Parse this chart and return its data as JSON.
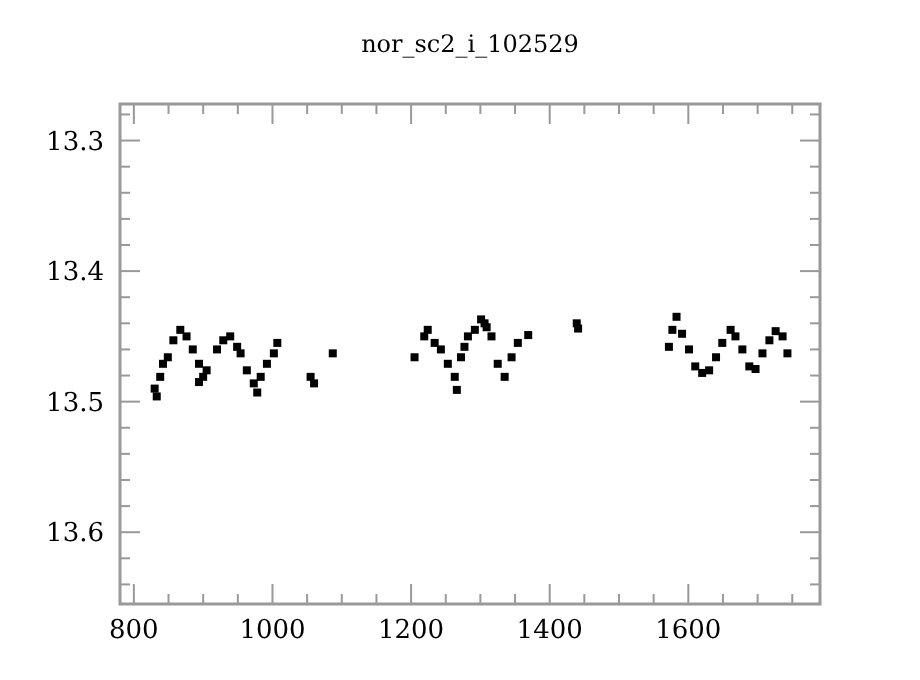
{
  "chart_data": {
    "type": "scatter",
    "title": "nor_sc2_i_102529",
    "marker": "square",
    "grid": false,
    "xlim": [
      780,
      1790
    ],
    "ylim": [
      13.655,
      13.272
    ],
    "xticks": [
      800,
      {
        "value": 850,
        "label": null
      },
      {
        "value": 900,
        "label": null
      },
      {
        "value": 950,
        "label": null
      },
      1000,
      {
        "value": 1050,
        "label": null
      },
      {
        "value": 1100,
        "label": null
      },
      {
        "value": 1150,
        "label": null
      },
      1200,
      {
        "value": 1250,
        "label": null
      },
      {
        "value": 1300,
        "label": null
      },
      {
        "value": 1350,
        "label": null
      },
      1400,
      {
        "value": 1450,
        "label": null
      },
      {
        "value": 1500,
        "label": null
      },
      {
        "value": 1550,
        "label": null
      },
      1600,
      {
        "value": 1650,
        "label": null
      },
      {
        "value": 1700,
        "label": null
      },
      {
        "value": 1750,
        "label": null
      }
    ],
    "yticks": [
      {
        "value": 13.28,
        "label": null
      },
      13.3,
      {
        "value": 13.32,
        "label": null
      },
      {
        "value": 13.34,
        "label": null
      },
      {
        "value": 13.36,
        "label": null
      },
      {
        "value": 13.38,
        "label": null
      },
      13.4,
      {
        "value": 13.42,
        "label": null
      },
      {
        "value": 13.44,
        "label": null
      },
      {
        "value": 13.46,
        "label": null
      },
      {
        "value": 13.48,
        "label": null
      },
      13.5,
      {
        "value": 13.52,
        "label": null
      },
      {
        "value": 13.54,
        "label": null
      },
      {
        "value": 13.56,
        "label": null
      },
      {
        "value": 13.58,
        "label": null
      },
      13.6,
      {
        "value": 13.62,
        "label": null
      },
      {
        "value": 13.64,
        "label": null
      }
    ],
    "series": [
      {
        "color": "#000000",
        "x": [
          830,
          833,
          838,
          842,
          849,
          857,
          867,
          876,
          885,
          894,
          900,
          894,
          905,
          920,
          929,
          939,
          949,
          954,
          963,
          973,
          978,
          983,
          992,
          1002,
          1007,
          1055,
          1060,
          1087,
          1205,
          1219,
          1224,
          1234,
          1243,
          1253,
          1263,
          1266,
          1272,
          1277,
          1282,
          1292,
          1301,
          1306,
          1309,
          1316,
          1325,
          1335,
          1345,
          1354,
          1369,
          1439,
          1441,
          1572,
          1577,
          1583,
          1591,
          1601,
          1610,
          1620,
          1630,
          1640,
          1649,
          1661,
          1668,
          1678,
          1688,
          1697,
          1707,
          1717,
          1726,
          1736,
          1743
        ],
        "values": [
          13.49,
          13.496,
          13.481,
          13.471,
          13.466,
          13.453,
          13.445,
          13.45,
          13.46,
          13.471,
          13.481,
          13.485,
          13.476,
          13.46,
          13.453,
          13.45,
          13.458,
          13.463,
          13.476,
          13.486,
          13.493,
          13.481,
          13.471,
          13.463,
          13.455,
          13.481,
          13.486,
          13.463,
          13.466,
          13.45,
          13.445,
          13.455,
          13.46,
          13.471,
          13.481,
          13.491,
          13.466,
          13.458,
          13.45,
          13.445,
          13.437,
          13.44,
          13.443,
          13.45,
          13.471,
          13.481,
          13.466,
          13.455,
          13.449,
          13.44,
          13.444,
          13.458,
          13.445,
          13.435,
          13.448,
          13.46,
          13.473,
          13.478,
          13.476,
          13.466,
          13.455,
          13.445,
          13.45,
          13.46,
          13.473,
          13.475,
          13.463,
          13.453,
          13.446,
          13.45,
          13.463
        ]
      }
    ]
  }
}
